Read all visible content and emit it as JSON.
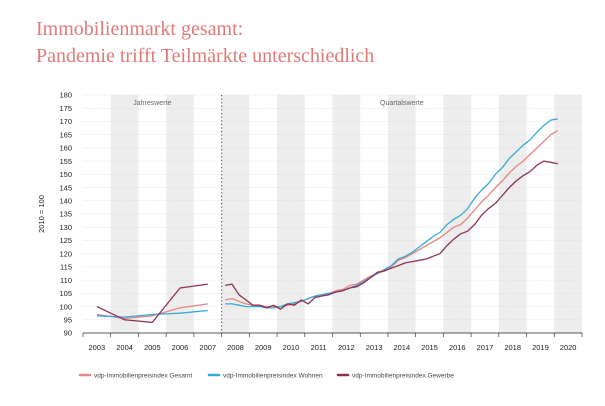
{
  "title_line1": "Immobilienmarkt gesamt:",
  "title_line2": "Pandemie trifft Teilmärkte unterschiedlich",
  "chart_data": {
    "type": "line",
    "ylabel": "2010 = 100",
    "ylim": [
      90,
      180
    ],
    "yticks": [
      90,
      95,
      100,
      105,
      110,
      115,
      120,
      125,
      130,
      135,
      140,
      145,
      150,
      155,
      160,
      165,
      170,
      175,
      180
    ],
    "xlim": [
      2002.5,
      2020.5
    ],
    "xticks": [
      "2003",
      "2004",
      "2005",
      "2006",
      "2007",
      "2008",
      "2009",
      "2010",
      "2011",
      "2012",
      "2013",
      "2014",
      "2015",
      "2016",
      "2017",
      "2018",
      "2019",
      "2020"
    ],
    "regions": [
      {
        "label": "Jahreswerte",
        "from": 2002.5,
        "to": 2007.5
      },
      {
        "label": "Quartalswerte",
        "from": 2007.5,
        "to": 2020.5
      }
    ],
    "divider_x": 2007.5,
    "grid": true,
    "legend_position": "bottom",
    "colors": {
      "gesamt": "#e38683",
      "wohnen": "#3aa8d6",
      "gewerbe": "#8e3152",
      "band": "#ededed",
      "divider": "#b0335a"
    },
    "series": [
      {
        "key": "gesamt",
        "name": "vdp-Immobilienpreisindex Gesamt",
        "annual": [
          [
            2003,
            97.0
          ],
          [
            2004,
            95.5
          ],
          [
            2005,
            96.5
          ],
          [
            2006,
            99.5
          ],
          [
            2007,
            101.0
          ]
        ],
        "quarterly": [
          102.5,
          103.0,
          102.0,
          101.0,
          100.5,
          100.5,
          100.0,
          100.0,
          100.0,
          100.5,
          101.0,
          102.0,
          103.0,
          104.0,
          104.5,
          105.0,
          106.0,
          106.5,
          108.0,
          108.5,
          110.0,
          111.5,
          112.5,
          113.5,
          115.0,
          117.5,
          118.5,
          120.0,
          121.5,
          123.0,
          124.5,
          126.0,
          128.0,
          130.0,
          131.0,
          133.5,
          136.5,
          139.5,
          142.0,
          145.0,
          147.5,
          150.5,
          153.0,
          155.0,
          157.5,
          160.0,
          162.5,
          165.0,
          166.5
        ]
      },
      {
        "key": "wohnen",
        "name": "vdp-Immobilienpreisindex Wohnen",
        "annual": [
          [
            2003,
            96.5
          ],
          [
            2004,
            96.0
          ],
          [
            2005,
            97.0
          ],
          [
            2006,
            97.5
          ],
          [
            2007,
            98.5
          ]
        ],
        "quarterly": [
          101.0,
          101.0,
          100.5,
          100.0,
          100.0,
          100.0,
          99.5,
          99.5,
          100.0,
          101.0,
          101.5,
          102.0,
          103.0,
          104.0,
          104.5,
          105.0,
          105.5,
          106.0,
          107.0,
          108.0,
          109.5,
          111.0,
          112.5,
          114.0,
          115.5,
          118.0,
          119.0,
          120.5,
          122.5,
          124.5,
          126.5,
          128.0,
          131.0,
          133.0,
          134.5,
          137.0,
          141.0,
          144.0,
          146.5,
          150.0,
          152.5,
          156.0,
          158.5,
          161.0,
          163.0,
          166.0,
          168.5,
          170.5,
          171.0
        ]
      },
      {
        "key": "gewerbe",
        "name": "vdp-Immobilienpreisindex Gewerbe",
        "annual": [
          [
            2003,
            100.0
          ],
          [
            2004,
            95.0
          ],
          [
            2005,
            94.0
          ],
          [
            2006,
            107.0
          ],
          [
            2007,
            108.5
          ]
        ],
        "quarterly": [
          108.0,
          108.5,
          104.5,
          102.5,
          100.5,
          100.5,
          99.5,
          100.5,
          99.0,
          101.0,
          100.5,
          102.5,
          101.0,
          103.5,
          104.0,
          104.5,
          105.5,
          106.0,
          107.0,
          107.5,
          109.0,
          111.0,
          113.0,
          113.5,
          114.5,
          115.5,
          116.5,
          117.0,
          117.5,
          118.0,
          119.0,
          120.0,
          123.0,
          125.5,
          127.5,
          128.5,
          131.0,
          134.5,
          137.0,
          139.0,
          142.0,
          145.0,
          147.5,
          149.5,
          151.0,
          153.5,
          155.0,
          154.5,
          154.0
        ]
      }
    ]
  }
}
